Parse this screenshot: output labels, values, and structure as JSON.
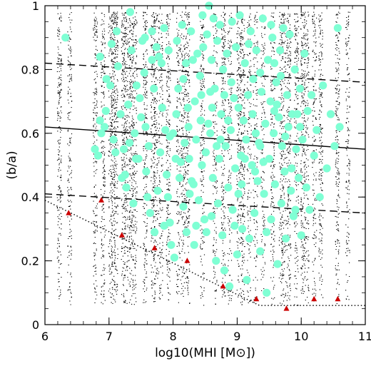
{
  "chart_data": {
    "type": "scatter",
    "title": "",
    "xlabel": "log10(MHI [M⊙])",
    "ylabel": "(b/a)",
    "xlim": [
      6,
      11
    ],
    "ylim": [
      0,
      1
    ],
    "x_ticks": [
      6,
      7,
      8,
      9,
      10,
      11
    ],
    "y_ticks": [
      0,
      0.2,
      0.4,
      0.6,
      0.8,
      1
    ],
    "x_tick_labels": [
      "6",
      "7",
      "8",
      "9",
      "10",
      "11"
    ],
    "y_tick_labels": [
      "0",
      "0.2",
      "0.4",
      "0.6",
      "0.8",
      "1"
    ],
    "grid": false,
    "legend": "none",
    "colors": {
      "model_points": "#000000",
      "observed_points": "#7fffd4",
      "triangles": "#cc0000",
      "lines": "#000000"
    },
    "series": [
      {
        "type": "scatter",
        "marker": "circle",
        "color": "#7fffd4",
        "points": [
          [
            6.32,
            0.9
          ],
          [
            6.78,
            0.55
          ],
          [
            6.83,
            0.53
          ],
          [
            6.86,
            0.84
          ],
          [
            6.86,
            0.64
          ],
          [
            6.88,
            0.6
          ],
          [
            6.93,
            0.62
          ],
          [
            6.95,
            0.67
          ],
          [
            6.96,
            0.77
          ],
          [
            7.02,
            0.75
          ],
          [
            7.04,
            0.88
          ],
          [
            7.07,
            0.58
          ],
          [
            7.1,
            0.54
          ],
          [
            7.12,
            0.92
          ],
          [
            7.14,
            0.81
          ],
          [
            7.18,
            0.66
          ],
          [
            7.2,
            0.46
          ],
          [
            7.23,
            0.55
          ],
          [
            7.27,
            0.43
          ],
          [
            7.3,
            0.69
          ],
          [
            7.32,
            0.57
          ],
          [
            7.33,
            0.98
          ],
          [
            7.35,
            0.86
          ],
          [
            7.4,
            0.6
          ],
          [
            7.43,
            0.75
          ],
          [
            7.46,
            0.52
          ],
          [
            7.5,
            0.65
          ],
          [
            7.52,
            0.89
          ],
          [
            7.55,
            0.79
          ],
          [
            7.57,
            0.62
          ],
          [
            7.6,
            0.4
          ],
          [
            7.62,
            0.56
          ],
          [
            7.64,
            0.35
          ],
          [
            7.67,
            0.92
          ],
          [
            7.7,
            0.74
          ],
          [
            7.71,
            0.29
          ],
          [
            7.74,
            0.87
          ],
          [
            7.76,
            0.42
          ],
          [
            7.78,
            0.84
          ],
          [
            7.82,
            0.82
          ],
          [
            7.83,
            0.68
          ],
          [
            7.86,
            0.31
          ],
          [
            7.88,
            0.61
          ],
          [
            7.9,
            0.47
          ],
          [
            7.93,
            0.86
          ],
          [
            7.95,
            0.59
          ],
          [
            7.97,
            0.25
          ],
          [
            8.0,
            0.6
          ],
          [
            8.02,
            0.21
          ],
          [
            8.05,
            0.66
          ],
          [
            8.06,
            0.89
          ],
          [
            8.1,
            0.46
          ],
          [
            8.12,
            0.51
          ],
          [
            8.14,
            0.94
          ],
          [
            8.16,
            0.37
          ],
          [
            8.18,
            0.57
          ],
          [
            8.2,
            0.82
          ],
          [
            8.21,
            0.29
          ],
          [
            8.23,
            0.68
          ],
          [
            8.25,
            0.52
          ],
          [
            8.28,
            0.92
          ],
          [
            8.29,
            0.45
          ],
          [
            8.31,
            0.83
          ],
          [
            8.33,
            0.25
          ],
          [
            8.34,
            0.7
          ],
          [
            8.36,
            0.58
          ],
          [
            8.38,
            0.85
          ],
          [
            8.4,
            0.39
          ],
          [
            8.42,
            0.78
          ],
          [
            8.43,
            0.64
          ],
          [
            8.45,
            0.5
          ],
          [
            8.47,
            0.87
          ],
          [
            8.49,
            0.33
          ],
          [
            8.51,
            0.54
          ],
          [
            8.53,
            0.91
          ],
          [
            8.55,
            0.63
          ],
          [
            8.56,
            1.0
          ],
          [
            8.58,
            0.6
          ],
          [
            8.6,
            0.83
          ],
          [
            8.62,
            0.46
          ],
          [
            8.63,
            0.96
          ],
          [
            8.65,
            0.74
          ],
          [
            8.67,
            0.2
          ],
          [
            8.69,
            0.89
          ],
          [
            8.7,
            0.38
          ],
          [
            8.72,
            0.52
          ],
          [
            8.73,
            0.94
          ],
          [
            8.75,
            0.66
          ],
          [
            8.77,
            0.28
          ],
          [
            8.78,
            0.8
          ],
          [
            8.8,
            0.17
          ],
          [
            8.82,
            0.56
          ],
          [
            8.84,
            0.85
          ],
          [
            8.86,
            0.43
          ],
          [
            8.88,
            0.12
          ],
          [
            8.9,
            0.61
          ],
          [
            8.92,
            0.95
          ],
          [
            8.93,
            0.36
          ],
          [
            8.95,
            0.71
          ],
          [
            8.97,
            0.49
          ],
          [
            8.98,
            0.87
          ],
          [
            9.0,
            0.22
          ],
          [
            9.02,
            0.68
          ],
          [
            9.04,
            0.97
          ],
          [
            9.06,
            0.53
          ],
          [
            9.08,
            0.3
          ],
          [
            9.1,
            0.64
          ],
          [
            9.12,
            0.82
          ],
          [
            9.14,
            0.58
          ],
          [
            9.15,
            0.14
          ],
          [
            9.17,
            0.72
          ],
          [
            9.19,
            0.27
          ],
          [
            9.21,
            0.92
          ],
          [
            9.23,
            0.5
          ],
          [
            9.25,
            0.77
          ],
          [
            9.27,
            0.35
          ],
          [
            9.29,
            0.6
          ],
          [
            9.3,
            0.86
          ],
          [
            9.32,
            0.45
          ],
          [
            9.34,
            0.57
          ],
          [
            9.36,
            0.23
          ],
          [
            9.38,
            0.73
          ],
          [
            9.4,
            0.96
          ],
          [
            9.42,
            0.41
          ],
          [
            9.44,
            0.63
          ],
          [
            9.46,
            0.1
          ],
          [
            9.48,
            0.83
          ],
          [
            9.5,
            0.52
          ],
          [
            9.52,
            0.7
          ],
          [
            9.53,
            0.33
          ],
          [
            9.55,
            0.9
          ],
          [
            9.57,
            0.6
          ],
          [
            9.59,
            0.44
          ],
          [
            9.61,
            0.76
          ],
          [
            9.63,
            0.19
          ],
          [
            9.65,
            0.65
          ],
          [
            9.67,
            0.86
          ],
          [
            9.69,
            0.38
          ],
          [
            9.7,
            0.56
          ],
          [
            9.72,
            0.93
          ],
          [
            9.74,
            0.48
          ],
          [
            9.76,
            0.27
          ],
          [
            9.78,
            0.72
          ],
          [
            9.8,
            0.62
          ],
          [
            9.82,
            0.91
          ],
          [
            9.84,
            0.42
          ],
          [
            9.86,
            0.66
          ],
          [
            9.88,
            0.34
          ],
          [
            9.9,
            0.8
          ],
          [
            9.92,
            0.55
          ],
          [
            9.94,
            0.66
          ],
          [
            9.96,
            0.46
          ],
          [
            9.98,
            0.74
          ],
          [
            10.0,
            0.28
          ],
          [
            10.02,
            0.58
          ],
          [
            10.05,
            0.85
          ],
          [
            10.08,
            0.43
          ],
          [
            10.1,
            0.67
          ],
          [
            10.13,
            0.36
          ],
          [
            10.16,
            0.72
          ],
          [
            10.2,
            0.53
          ],
          [
            10.24,
            0.61
          ],
          [
            10.29,
            0.4
          ],
          [
            10.34,
            0.75
          ],
          [
            10.4,
            0.49
          ],
          [
            10.46,
            0.66
          ],
          [
            10.52,
            0.56
          ],
          [
            10.57,
            0.93
          ],
          [
            10.6,
            0.62
          ],
          [
            7.25,
            0.47
          ],
          [
            7.38,
            0.38
          ],
          [
            7.48,
            0.71
          ],
          [
            7.58,
            0.48
          ],
          [
            7.8,
            0.54
          ],
          [
            7.92,
            0.4
          ],
          [
            8.08,
            0.74
          ],
          [
            8.26,
            0.41
          ],
          [
            8.44,
            0.72
          ],
          [
            8.61,
            0.68
          ],
          [
            8.74,
            0.58
          ],
          [
            8.91,
            0.76
          ],
          [
            9.07,
            0.44
          ],
          [
            9.24,
            0.66
          ],
          [
            9.41,
            0.51
          ],
          [
            9.58,
            0.67
          ],
          [
            9.75,
            0.59
          ],
          [
            9.91,
            0.36
          ],
          [
            9.46,
            0.29
          ],
          [
            8.52,
            0.29
          ],
          [
            8.36,
            0.31
          ],
          [
            7.95,
            0.32
          ],
          [
            9.62,
            0.69
          ],
          [
            9.85,
            0.49
          ],
          [
            9.53,
            0.94
          ],
          [
            9.36,
            0.79
          ],
          [
            8.86,
            0.64
          ],
          [
            8.46,
            0.97
          ],
          [
            8.16,
            0.77
          ],
          [
            7.86,
            0.93
          ],
          [
            7.67,
            0.83
          ],
          [
            8.68,
            0.56
          ],
          [
            9.12,
            0.52
          ],
          [
            9.28,
            0.48
          ],
          [
            9.98,
            0.62
          ],
          [
            9.02,
            0.41
          ],
          [
            8.96,
            0.31
          ],
          [
            8.6,
            0.34
          ],
          [
            8.24,
            0.62
          ],
          [
            8.04,
            0.52
          ],
          [
            7.42,
            0.52
          ],
          [
            7.56,
            0.9
          ],
          [
            9.18,
            0.88
          ],
          [
            9.36,
            0.56
          ],
          [
            9.58,
            0.82
          ],
          [
            9.68,
            0.78
          ],
          [
            8.8,
            0.72
          ],
          [
            8.32,
            0.44
          ],
          [
            8.58,
            0.73
          ]
        ]
      },
      {
        "type": "scatter",
        "marker": "triangle",
        "color": "#cc0000",
        "points": [
          [
            6.37,
            0.35
          ],
          [
            6.88,
            0.39
          ],
          [
            7.2,
            0.28
          ],
          [
            7.71,
            0.24
          ],
          [
            8.22,
            0.2
          ],
          [
            8.78,
            0.12
          ],
          [
            9.3,
            0.08
          ],
          [
            9.77,
            0.05
          ],
          [
            10.2,
            0.08
          ],
          [
            10.57,
            0.08
          ]
        ]
      },
      {
        "type": "line",
        "style": "solid",
        "color": "#000000",
        "points": [
          [
            6.0,
            0.62
          ],
          [
            11.0,
            0.55
          ]
        ]
      },
      {
        "type": "line",
        "style": "dashed",
        "color": "#000000",
        "points": [
          [
            6.0,
            0.82
          ],
          [
            11.0,
            0.76
          ]
        ]
      },
      {
        "type": "line",
        "style": "dashed",
        "color": "#000000",
        "points": [
          [
            6.0,
            0.41
          ],
          [
            11.0,
            0.35
          ]
        ]
      },
      {
        "type": "line",
        "style": "dotted",
        "color": "#000000",
        "points": [
          [
            6.0,
            0.39
          ],
          [
            9.35,
            0.06
          ],
          [
            11.0,
            0.06
          ]
        ]
      }
    ],
    "dot_columns": {
      "x": [
        6.22,
        6.38,
        6.78,
        6.9,
        7.02,
        7.06,
        7.1,
        7.22,
        7.26,
        7.34,
        7.4,
        7.56,
        7.68,
        7.72,
        7.8,
        7.92,
        8.08,
        8.15,
        8.22,
        8.45,
        8.65,
        8.78,
        8.88,
        9.02,
        9.08,
        9.18,
        9.28,
        9.4,
        9.55,
        9.68,
        9.72,
        9.8,
        9.92,
        10.02,
        10.08,
        10.2,
        10.3,
        10.56,
        10.72
      ],
      "y_range": [
        0.06,
        0.98
      ],
      "color": "#000000"
    }
  }
}
